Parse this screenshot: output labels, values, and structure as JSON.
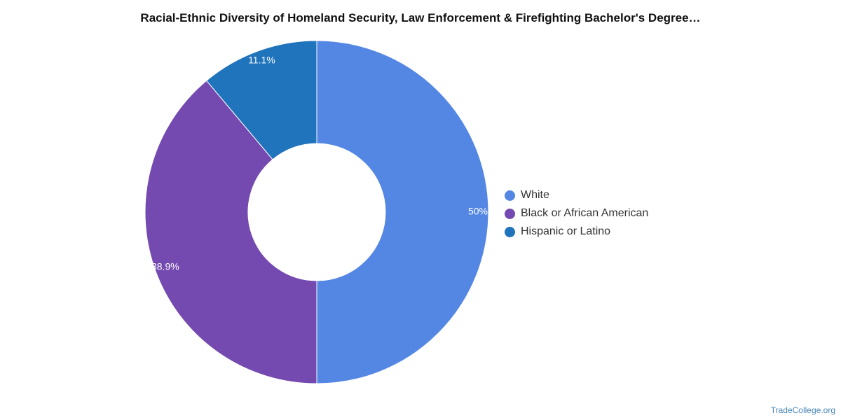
{
  "chart_data": {
    "type": "pie",
    "title": "Racial-Ethnic Diversity of Homeland Security, Law Enforcement & Firefighting Bachelor's Degree…",
    "donut": true,
    "categories": [
      "White",
      "Black or African American",
      "Hispanic or Latino"
    ],
    "values": [
      50,
      38.9,
      11.1
    ],
    "labels": [
      "50%",
      "38.9%",
      "11.1%"
    ],
    "colors": [
      "#5487e4",
      "#7449b0",
      "#1f74bc"
    ],
    "legend_position": "right"
  },
  "footer": {
    "source": "TradeCollege.org"
  }
}
